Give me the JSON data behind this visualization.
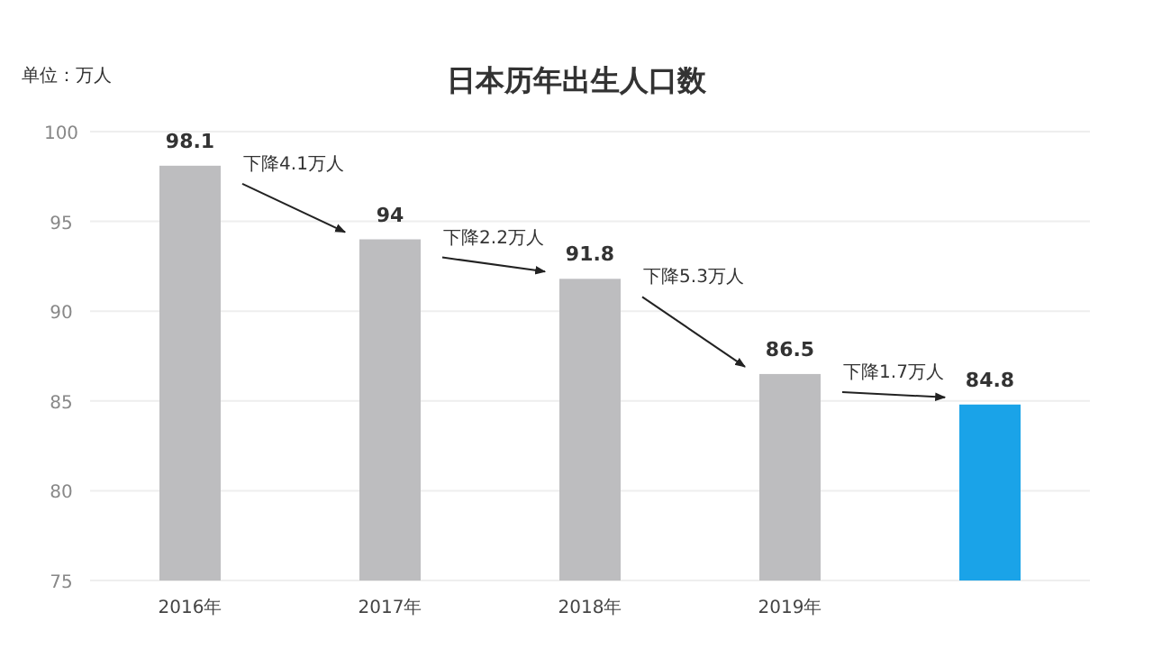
{
  "chart_data": {
    "type": "bar",
    "title": "日本历年出生人口数",
    "ylabel": "单位：万人",
    "categories": [
      "2016年",
      "2017年",
      "2018年",
      "2019年",
      null
    ],
    "values": [
      98.1,
      94,
      91.8,
      86.5,
      84.8
    ],
    "colors": [
      "#bdbdbf",
      "#bdbdbf",
      "#bdbdbf",
      "#bdbdbf",
      "#1aa3e8"
    ],
    "ylim": [
      75,
      100
    ],
    "yticks": [
      75,
      80,
      85,
      90,
      95,
      100
    ],
    "grid": "y",
    "data_labels": true,
    "annotations": [
      "下降4.1万人",
      "下降2.2万人",
      "下降5.3万人",
      "下降1.7万人"
    ]
  }
}
